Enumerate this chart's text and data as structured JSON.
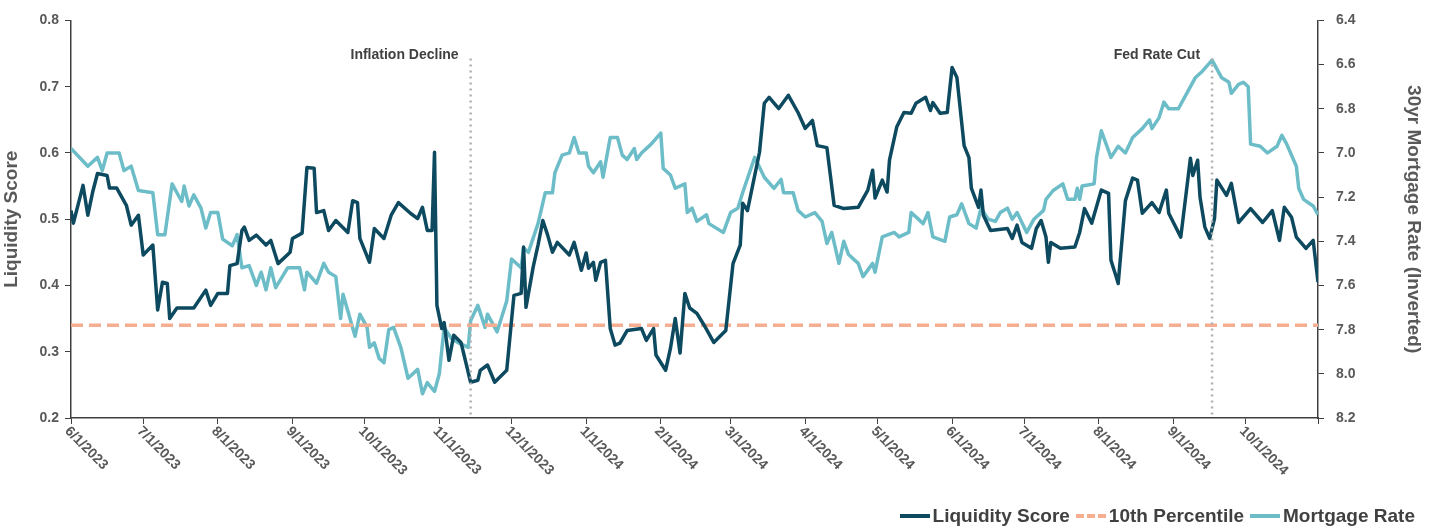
{
  "chart_data": {
    "type": "line",
    "ylabel": "Liquidity Score",
    "y2label": "30yr Mortgage Rate (Inverted)",
    "legend": "bottom right",
    "xlim": [
      "2023-06-01",
      "2024-10-31"
    ],
    "xticks": [
      {
        "value": "2023-06-01",
        "label": "6/1/2023"
      },
      {
        "value": "2023-07-01",
        "label": "7/1/2023"
      },
      {
        "value": "2023-08-01",
        "label": "8/1/2023"
      },
      {
        "value": "2023-09-01",
        "label": "9/1/2023"
      },
      {
        "value": "2023-10-01",
        "label": "10/1/2023"
      },
      {
        "value": "2023-11-01",
        "label": "11/1/2023"
      },
      {
        "value": "2023-12-01",
        "label": "12/1/2023"
      },
      {
        "value": "2024-01-01",
        "label": "1/1/2024"
      },
      {
        "value": "2024-02-01",
        "label": "2/1/2024"
      },
      {
        "value": "2024-03-01",
        "label": "3/1/2024"
      },
      {
        "value": "2024-04-01",
        "label": "4/1/2024"
      },
      {
        "value": "2024-05-01",
        "label": "5/1/2024"
      },
      {
        "value": "2024-06-01",
        "label": "6/1/2024"
      },
      {
        "value": "2024-07-01",
        "label": "7/1/2024"
      },
      {
        "value": "2024-08-01",
        "label": "8/1/2024"
      },
      {
        "value": "2024-09-01",
        "label": "9/1/2024"
      },
      {
        "value": "2024-10-01",
        "label": "10/1/2024"
      },
      {
        "value": "2024-10-31",
        "label": null
      }
    ],
    "ylim": [
      0.2,
      0.8
    ],
    "yticks": [
      0.2,
      0.3,
      0.4,
      0.5,
      0.6,
      0.7,
      0.8
    ],
    "y2lim": [
      8.2,
      6.4
    ],
    "y2ticks": [
      {
        "value": 8.2,
        "label": "8.2"
      },
      {
        "value": 8,
        "label": "8.0"
      },
      {
        "value": 7.8,
        "label": "7.8"
      },
      {
        "value": 7.6,
        "label": "7.6"
      },
      {
        "value": 7.4,
        "label": "7.4"
      },
      {
        "value": 7.2,
        "label": "7.2"
      },
      {
        "value": 7,
        "label": "7.0"
      },
      {
        "value": 6.8,
        "label": "6.8"
      },
      {
        "value": 6.6,
        "label": "6.6"
      },
      {
        "value": 6.4,
        "label": "6.4"
      }
    ],
    "ref_lines": [
      {
        "axis": "x",
        "value": "2023-11-14",
        "label": "Inflation Decline",
        "color": "#b0b0b0",
        "line_style": "dotted"
      },
      {
        "axis": "x",
        "value": "2024-09-17",
        "label": "Fed Rate Cut",
        "color": "#b0b0b0",
        "line_style": "dotted"
      }
    ],
    "series": [
      {
        "name": "Liquidity Score",
        "type": "line",
        "color": "#0d4a60",
        "line_style": "solid",
        "x": [
          "2023-06-01",
          "2023-06-02",
          "2023-06-06",
          "2023-06-08",
          "2023-06-10",
          "2023-06-12",
          "2023-06-16",
          "2023-06-17",
          "2023-06-20",
          "2023-06-24",
          "2023-06-26",
          "2023-06-29",
          "2023-07-01",
          "2023-07-05",
          "2023-07-07",
          "2023-07-09",
          "2023-07-11",
          "2023-07-12",
          "2023-07-15",
          "2023-07-22",
          "2023-07-27",
          "2023-07-29",
          "2023-08-01",
          "2023-08-05",
          "2023-08-06",
          "2023-08-09",
          "2023-08-11",
          "2023-08-12",
          "2023-08-14",
          "2023-08-17",
          "2023-08-21",
          "2023-08-23",
          "2023-08-26",
          "2023-08-31",
          "2023-09-01",
          "2023-09-05",
          "2023-09-07",
          "2023-09-10",
          "2023-09-11",
          "2023-09-14",
          "2023-09-16",
          "2023-09-19",
          "2023-09-24",
          "2023-09-26",
          "2023-09-28",
          "2023-09-29",
          "2023-10-03",
          "2023-10-05",
          "2023-10-09",
          "2023-10-12",
          "2023-10-15",
          "2023-10-20",
          "2023-10-23",
          "2023-10-25",
          "2023-10-27",
          "2023-10-29",
          "2023-10-30",
          "2023-10-31",
          "2023-11-02",
          "2023-11-03",
          "2023-11-05",
          "2023-11-07",
          "2023-11-10",
          "2023-11-14",
          "2023-11-17",
          "2023-11-18",
          "2023-11-21",
          "2023-11-24",
          "2023-11-29",
          "2023-12-02",
          "2023-12-05",
          "2023-12-06",
          "2023-12-07",
          "2023-12-10",
          "2023-12-12",
          "2023-12-14",
          "2023-12-16",
          "2023-12-18",
          "2023-12-20",
          "2023-12-25",
          "2023-12-27",
          "2023-12-30",
          "2024-01-01",
          "2024-01-02",
          "2024-01-04",
          "2024-01-05",
          "2024-01-07",
          "2024-01-09",
          "2024-01-11",
          "2024-01-13",
          "2024-01-15",
          "2024-01-18",
          "2024-01-24",
          "2024-01-26",
          "2024-01-29",
          "2024-01-30",
          "2024-02-03",
          "2024-02-05",
          "2024-02-07",
          "2024-02-09",
          "2024-02-11",
          "2024-02-13",
          "2024-02-16",
          "2024-02-19",
          "2024-02-23",
          "2024-02-28",
          "2024-03-02",
          "2024-03-05",
          "2024-03-06",
          "2024-03-08",
          "2024-03-13",
          "2024-03-15",
          "2024-03-17",
          "2024-03-21",
          "2024-03-25",
          "2024-03-29",
          "2024-04-01",
          "2024-04-04",
          "2024-04-06",
          "2024-04-10",
          "2024-04-13",
          "2024-04-17",
          "2024-04-23",
          "2024-04-27",
          "2024-04-29",
          "2024-04-30",
          "2024-05-03",
          "2024-05-05",
          "2024-05-06",
          "2024-05-09",
          "2024-05-12",
          "2024-05-15",
          "2024-05-17",
          "2024-05-21",
          "2024-05-23",
          "2024-05-24",
          "2024-05-27",
          "2024-05-30",
          "2024-06-01",
          "2024-06-03",
          "2024-06-06",
          "2024-06-08",
          "2024-06-09",
          "2024-06-12",
          "2024-06-13",
          "2024-06-14",
          "2024-06-17",
          "2024-06-24",
          "2024-06-26",
          "2024-06-28",
          "2024-06-30",
          "2024-07-04",
          "2024-07-06",
          "2024-07-08",
          "2024-07-10",
          "2024-07-11",
          "2024-07-12",
          "2024-07-16",
          "2024-07-22",
          "2024-07-24",
          "2024-07-26",
          "2024-07-29",
          "2024-08-02",
          "2024-08-05",
          "2024-08-06",
          "2024-08-08",
          "2024-08-09",
          "2024-08-12",
          "2024-08-15",
          "2024-08-17",
          "2024-08-19",
          "2024-08-23",
          "2024-08-26",
          "2024-08-29",
          "2024-08-30",
          "2024-09-04",
          "2024-09-08",
          "2024-09-09",
          "2024-09-11",
          "2024-09-12",
          "2024-09-14",
          "2024-09-16",
          "2024-09-18",
          "2024-09-19",
          "2024-09-23",
          "2024-09-25",
          "2024-09-28",
          "2024-10-03",
          "2024-10-08",
          "2024-10-12",
          "2024-10-15",
          "2024-10-17",
          "2024-10-20",
          "2024-10-22",
          "2024-10-26",
          "2024-10-29",
          "2024-10-31"
        ],
        "values": [
          0.513,
          0.494,
          0.551,
          0.506,
          0.541,
          0.569,
          0.566,
          0.547,
          0.547,
          0.521,
          0.491,
          0.506,
          0.446,
          0.461,
          0.363,
          0.405,
          0.403,
          0.35,
          0.366,
          0.366,
          0.393,
          0.37,
          0.388,
          0.388,
          0.43,
          0.433,
          0.483,
          0.488,
          0.468,
          0.476,
          0.461,
          0.468,
          0.433,
          0.45,
          0.471,
          0.479,
          0.578,
          0.577,
          0.51,
          0.513,
          0.483,
          0.498,
          0.48,
          0.528,
          0.525,
          0.471,
          0.435,
          0.486,
          0.471,
          0.506,
          0.525,
          0.509,
          0.501,
          0.518,
          0.483,
          0.483,
          0.601,
          0.37,
          0.335,
          0.344,
          0.287,
          0.325,
          0.314,
          0.254,
          0.257,
          0.272,
          0.28,
          0.254,
          0.272,
          0.385,
          0.388,
          0.458,
          0.367,
          0.428,
          0.461,
          0.498,
          0.476,
          0.45,
          0.465,
          0.446,
          0.465,
          0.423,
          0.449,
          0.426,
          0.435,
          0.408,
          0.435,
          0.438,
          0.335,
          0.31,
          0.313,
          0.332,
          0.335,
          0.317,
          0.335,
          0.295,
          0.272,
          0.305,
          0.35,
          0.298,
          0.388,
          0.366,
          0.358,
          0.34,
          0.314,
          0.332,
          0.433,
          0.461,
          0.524,
          0.513,
          0.601,
          0.675,
          0.684,
          0.667,
          0.687,
          0.661,
          0.637,
          0.649,
          0.611,
          0.608,
          0.521,
          0.516,
          0.518,
          0.544,
          0.574,
          0.532,
          0.559,
          0.541,
          0.589,
          0.639,
          0.661,
          0.66,
          0.675,
          0.684,
          0.664,
          0.676,
          0.66,
          0.661,
          0.729,
          0.714,
          0.611,
          0.593,
          0.547,
          0.518,
          0.544,
          0.506,
          0.483,
          0.486,
          0.471,
          0.491,
          0.465,
          0.456,
          0.486,
          0.498,
          0.473,
          0.435,
          0.465,
          0.456,
          0.458,
          0.48,
          0.516,
          0.494,
          0.544,
          0.539,
          0.438,
          0.415,
          0.403,
          0.528,
          0.562,
          0.559,
          0.509,
          0.525,
          0.51,
          0.544,
          0.509,
          0.473,
          0.592,
          0.566,
          0.589,
          0.533,
          0.488,
          0.471,
          0.501,
          0.559,
          0.536,
          0.554,
          0.495,
          0.516,
          0.495,
          0.513,
          0.468,
          0.518,
          0.503,
          0.473,
          0.456,
          0.468,
          0.405
        ]
      },
      {
        "name": "10th Percentile",
        "type": "line",
        "color": "#f7ad8f",
        "line_style": "dashed",
        "x": [
          "2023-06-01",
          "2024-10-31"
        ],
        "values": [
          0.34,
          0.34
        ]
      },
      {
        "name": "Mortgage Rate",
        "type": "line",
        "color": "#6cbdc8",
        "line_style": "solid",
        "axis": "y2",
        "x": [
          "2023-06-01",
          "2023-06-08",
          "2023-06-12",
          "2023-06-14",
          "2023-06-16",
          "2023-06-21",
          "2023-06-23",
          "2023-06-26",
          "2023-06-29",
          "2023-07-05",
          "2023-07-07",
          "2023-07-10",
          "2023-07-13",
          "2023-07-17",
          "2023-07-18",
          "2023-07-20",
          "2023-07-22",
          "2023-07-25",
          "2023-07-27",
          "2023-07-29",
          "2023-08-01",
          "2023-08-03",
          "2023-08-07",
          "2023-08-09",
          "2023-08-11",
          "2023-08-14",
          "2023-08-17",
          "2023-08-19",
          "2023-08-21",
          "2023-08-23",
          "2023-08-25",
          "2023-08-30",
          "2023-09-04",
          "2023-09-06",
          "2023-09-07",
          "2023-09-11",
          "2023-09-14",
          "2023-09-16",
          "2023-09-19",
          "2023-09-21",
          "2023-09-22",
          "2023-09-27",
          "2023-09-29",
          "2023-10-02",
          "2023-10-03",
          "2023-10-05",
          "2023-10-07",
          "2023-10-09",
          "2023-10-11",
          "2023-10-13",
          "2023-10-16",
          "2023-10-19",
          "2023-10-23",
          "2023-10-25",
          "2023-10-27",
          "2023-10-30",
          "2023-11-01",
          "2023-11-03",
          "2023-11-06",
          "2023-11-09",
          "2023-11-13",
          "2023-11-14",
          "2023-11-17",
          "2023-11-20",
          "2023-11-21",
          "2023-11-25",
          "2023-11-29",
          "2023-12-01",
          "2023-12-05",
          "2023-12-06",
          "2023-12-08",
          "2023-12-12",
          "2023-12-15",
          "2023-12-18",
          "2023-12-19",
          "2023-12-22",
          "2023-12-25",
          "2023-12-27",
          "2023-12-29",
          "2024-01-01",
          "2024-01-02",
          "2024-01-04",
          "2024-01-07",
          "2024-01-08",
          "2024-01-11",
          "2024-01-14",
          "2024-01-16",
          "2024-01-18",
          "2024-01-21",
          "2024-01-22",
          "2024-01-24",
          "2024-01-28",
          "2024-02-01",
          "2024-02-02",
          "2024-02-05",
          "2024-02-07",
          "2024-02-11",
          "2024-02-12",
          "2024-02-14",
          "2024-02-16",
          "2024-02-20",
          "2024-02-21",
          "2024-02-27",
          "2024-03-01",
          "2024-03-04",
          "2024-03-06",
          "2024-03-11",
          "2024-03-15",
          "2024-03-19",
          "2024-03-22",
          "2024-03-23",
          "2024-03-27",
          "2024-03-29",
          "2024-04-01",
          "2024-04-05",
          "2024-04-08",
          "2024-04-10",
          "2024-04-12",
          "2024-04-15",
          "2024-04-17",
          "2024-04-19",
          "2024-04-23",
          "2024-04-25",
          "2024-04-29",
          "2024-04-30",
          "2024-05-03",
          "2024-05-08",
          "2024-05-10",
          "2024-05-14",
          "2024-05-15",
          "2024-05-20",
          "2024-05-22",
          "2024-05-24",
          "2024-05-29",
          "2024-05-31",
          "2024-06-03",
          "2024-06-05",
          "2024-06-08",
          "2024-06-11",
          "2024-06-13",
          "2024-06-16",
          "2024-06-19",
          "2024-06-21",
          "2024-06-24",
          "2024-06-26",
          "2024-06-28",
          "2024-07-02",
          "2024-07-05",
          "2024-07-09",
          "2024-07-10",
          "2024-07-13",
          "2024-07-17",
          "2024-07-19",
          "2024-07-22",
          "2024-07-23",
          "2024-07-24",
          "2024-07-25",
          "2024-07-30",
          "2024-07-31",
          "2024-08-02",
          "2024-08-06",
          "2024-08-09",
          "2024-08-12",
          "2024-08-15",
          "2024-08-19",
          "2024-08-22",
          "2024-08-23",
          "2024-08-26",
          "2024-08-28",
          "2024-08-30",
          "2024-09-03",
          "2024-09-07",
          "2024-09-10",
          "2024-09-13",
          "2024-09-17",
          "2024-09-21",
          "2024-09-24",
          "2024-09-25",
          "2024-09-28",
          "2024-09-30",
          "2024-10-02",
          "2024-10-03",
          "2024-10-07",
          "2024-10-08",
          "2024-10-10",
          "2024-10-14",
          "2024-10-16",
          "2024-10-18",
          "2024-10-22",
          "2024-10-23",
          "2024-10-25",
          "2024-10-29",
          "2024-10-31"
        ],
        "values": [
          6.98,
          7.06,
          7.02,
          7.08,
          7.0,
          7.0,
          7.08,
          7.06,
          7.17,
          7.18,
          7.37,
          7.37,
          7.14,
          7.22,
          7.15,
          7.24,
          7.19,
          7.25,
          7.34,
          7.27,
          7.27,
          7.39,
          7.42,
          7.37,
          7.52,
          7.51,
          7.6,
          7.54,
          7.62,
          7.52,
          7.61,
          7.52,
          7.52,
          7.62,
          7.54,
          7.59,
          7.5,
          7.54,
          7.56,
          7.75,
          7.64,
          7.83,
          7.73,
          7.79,
          7.88,
          7.86,
          7.93,
          7.95,
          7.8,
          7.79,
          7.88,
          8.02,
          7.98,
          8.09,
          8.04,
          8.08,
          8.0,
          7.79,
          7.84,
          7.86,
          7.88,
          7.76,
          7.69,
          7.79,
          7.73,
          7.81,
          7.67,
          7.48,
          7.52,
          7.43,
          7.45,
          7.32,
          7.18,
          7.18,
          7.09,
          7.01,
          7.0,
          6.93,
          7.0,
          7.0,
          7.06,
          7.09,
          7.04,
          7.11,
          6.93,
          6.93,
          7.01,
          7.03,
          6.98,
          7.03,
          7.0,
          6.96,
          6.91,
          7.07,
          7.1,
          7.16,
          7.14,
          7.27,
          7.25,
          7.31,
          7.28,
          7.32,
          7.36,
          7.27,
          7.25,
          7.18,
          7.02,
          7.11,
          7.16,
          7.12,
          7.18,
          7.18,
          7.26,
          7.29,
          7.27,
          7.31,
          7.41,
          7.36,
          7.5,
          7.4,
          7.46,
          7.5,
          7.56,
          7.5,
          7.54,
          7.38,
          7.36,
          7.38,
          7.36,
          7.27,
          7.32,
          7.27,
          7.38,
          7.4,
          7.29,
          7.28,
          7.23,
          7.32,
          7.34,
          7.25,
          7.3,
          7.31,
          7.27,
          7.25,
          7.3,
          7.27,
          7.36,
          7.3,
          7.26,
          7.21,
          7.17,
          7.14,
          7.21,
          7.21,
          7.16,
          7.21,
          7.15,
          7.14,
          7.02,
          6.9,
          7.02,
          6.97,
          7.0,
          6.93,
          6.89,
          6.85,
          6.89,
          6.84,
          6.77,
          6.8,
          6.8,
          6.72,
          6.66,
          6.63,
          6.58,
          6.66,
          6.68,
          6.73,
          6.69,
          6.68,
          6.7,
          6.96,
          6.97,
          6.98,
          7.0,
          6.97,
          6.92,
          6.96,
          7.06,
          7.16,
          7.21,
          7.24,
          7.28
        ]
      }
    ]
  }
}
